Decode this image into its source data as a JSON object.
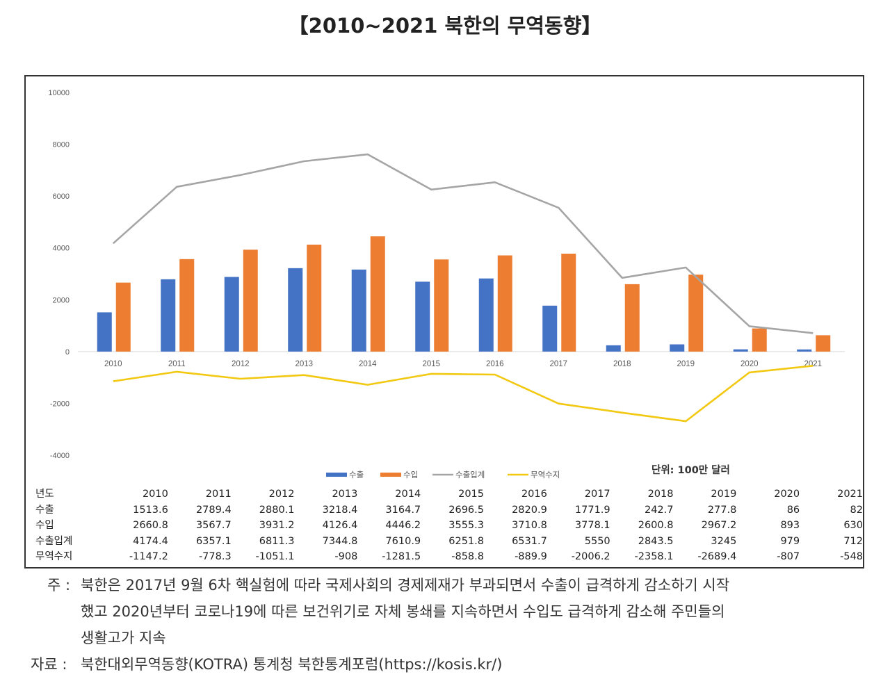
{
  "title": "【2010~2021 북한의 무역동향】",
  "chart_data": {
    "type": "bar",
    "categories": [
      "2010",
      "2011",
      "2012",
      "2013",
      "2014",
      "2015",
      "2016",
      "2017",
      "2018",
      "2019",
      "2020",
      "2021"
    ],
    "series": [
      {
        "name": "수출",
        "type": "bar",
        "color": "#4472C4",
        "values": [
          1513.6,
          2789.4,
          2880.1,
          3218.4,
          3164.7,
          2696.5,
          2820.9,
          1771.9,
          242.7,
          277.8,
          86,
          82
        ]
      },
      {
        "name": "수입",
        "type": "bar",
        "color": "#ED7D31",
        "values": [
          2660.8,
          3567.7,
          3931.2,
          4126.4,
          4446.2,
          3555.3,
          3710.8,
          3778.1,
          2600.8,
          2967.2,
          893,
          630
        ]
      },
      {
        "name": "수출입계",
        "type": "line",
        "color": "#A5A5A5",
        "values": [
          4174.4,
          6357.1,
          6811.3,
          7344.8,
          7610.9,
          6251.8,
          6531.7,
          5550,
          2843.5,
          3245,
          979,
          712
        ]
      },
      {
        "name": "무역수지",
        "type": "line",
        "color": "#F2C811",
        "values": [
          -1147.2,
          -778.3,
          -1051.1,
          -908,
          -1281.5,
          -858.8,
          -889.9,
          -2006.2,
          -2358.1,
          -2689.4,
          -807,
          -548
        ]
      }
    ],
    "yticks": [
      "10000",
      "8000",
      "6000",
      "4000",
      "2000",
      "0",
      "-2000",
      "-4000"
    ],
    "ylim": [
      -4000,
      10000
    ],
    "unit_note": "단위: 100만 달러",
    "legend_position": "bottom",
    "grid": false
  },
  "table": {
    "header_label": "년도",
    "rows": [
      {
        "label": "수출",
        "values": [
          "1513.6",
          "2789.4",
          "2880.1",
          "3218.4",
          "3164.7",
          "2696.5",
          "2820.9",
          "1771.9",
          "242.7",
          "277.8",
          "86",
          "82"
        ]
      },
      {
        "label": "수입",
        "values": [
          "2660.8",
          "3567.7",
          "3931.2",
          "4126.4",
          "4446.2",
          "3555.3",
          "3710.8",
          "3778.1",
          "2600.8",
          "2967.2",
          "893",
          "630"
        ]
      },
      {
        "label": "수출입계",
        "values": [
          "4174.4",
          "6357.1",
          "6811.3",
          "7344.8",
          "7610.9",
          "6251.8",
          "6531.7",
          "5550",
          "2843.5",
          "3245",
          "979",
          "712"
        ]
      },
      {
        "label": "무역수지",
        "values": [
          "-1147.2",
          "-778.3",
          "-1051.1",
          "-908",
          "-1281.5",
          "-858.8",
          "-889.9",
          "-2006.2",
          "-2358.1",
          "-2689.4",
          "-807",
          "-548"
        ]
      }
    ]
  },
  "notes": {
    "note_label": "주 :",
    "note_lines": [
      "북한은 2017년 9월 6차 핵실험에 따라 국제사회의 경제제재가 부과되면서 수출이 급격하게 감소하기 시작",
      "했고 2020년부터 코로나19에 따른 보건위기로 자체 봉쇄를 지속하면서 수입도 급격하게 감소해 주민들의",
      "생활고가 지속"
    ],
    "source_label": "자료 :",
    "source_text": "북한대외무역동향(KOTRA) 통계청 북한통계포럼(https://kosis.kr/)"
  }
}
